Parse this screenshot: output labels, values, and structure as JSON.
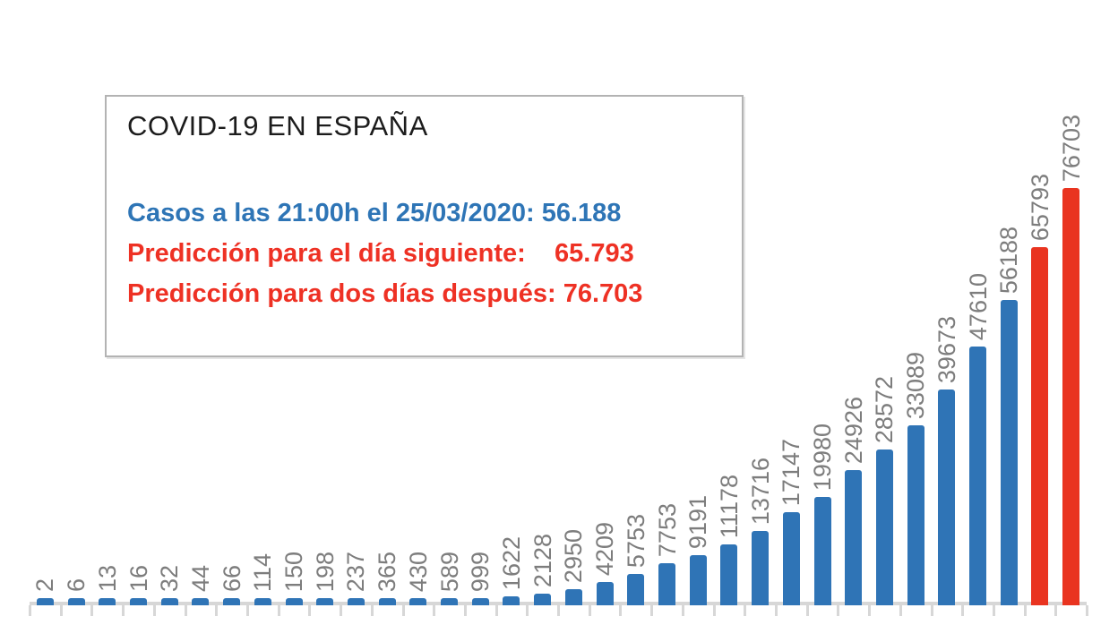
{
  "chart_data": {
    "type": "bar",
    "title": "COVID-19 EN ESPAÑA",
    "annotation_cases": "Casos a las 21:00h el 25/03/2020: 56.188",
    "annotation_prediction_next_day": "Predicción para el día siguiente:    65.793",
    "annotation_prediction_two_days": "Predicción para dos días después: 76.703",
    "values": [
      2,
      6,
      13,
      16,
      32,
      44,
      66,
      114,
      150,
      198,
      237,
      365,
      430,
      589,
      999,
      1622,
      2128,
      2950,
      4209,
      5753,
      7753,
      9191,
      11178,
      13716,
      17147,
      19980,
      24926,
      28572,
      33089,
      39673,
      47610,
      56188,
      65793,
      76703
    ],
    "num_actual_bars": 32,
    "num_prediction_bars": 2,
    "ylim": [
      0,
      76703
    ],
    "x_tick_labels": [],
    "bar_value_labels": "rotated 90° above each bar",
    "grid": "off",
    "legend": "none"
  },
  "colors": {
    "actual_bar": "#2f74b6",
    "prediction_bar": "#e93420",
    "cases_text": "#2e75b6",
    "prediction_text": "#ee3124",
    "bar_label_text": "#7d7d7d",
    "axis": "#d7d7d7"
  }
}
